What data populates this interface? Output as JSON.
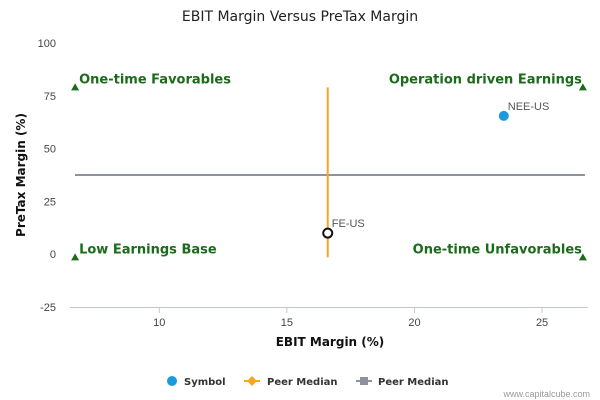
{
  "chart_data": {
    "type": "scatter",
    "title": "EBIT Margin Versus PreTax Margin",
    "xlabel": "EBIT Margin (%)",
    "ylabel": "PreTax Margin (%)",
    "xlim": [
      6.5,
      26.8
    ],
    "ylim": [
      -25,
      100
    ],
    "x_ticks": [
      "10",
      "15",
      "20",
      "25"
    ],
    "x_tick_values": [
      10,
      15,
      20,
      25
    ],
    "y_ticks": [
      "100",
      "75",
      "50",
      "25",
      "0",
      "-25"
    ],
    "y_tick_values": [
      100,
      75,
      50,
      25,
      0,
      -25
    ],
    "grid": false,
    "points": [
      {
        "label": "NEE-US",
        "x": 23.5,
        "y": 65.5,
        "color": "#1a9be0",
        "style": "filled"
      },
      {
        "label": "FE-US",
        "x": 16.6,
        "y": 10,
        "color": "#111111",
        "style": "hollow"
      }
    ],
    "peer_median_x": 16.6,
    "peer_median_x_range": [
      -1.5,
      79
    ],
    "peer_median_y": 37.5,
    "quadrant_labels": [
      {
        "text": "One-time Favorables",
        "corner": "top-left",
        "x": 6.7,
        "y": 79
      },
      {
        "text": "Operation driven Earnings",
        "corner": "top-right",
        "x": 26.6,
        "y": 79
      },
      {
        "text": "Low Earnings Base",
        "corner": "bottom-left",
        "x": 6.7,
        "y": -1.5
      },
      {
        "text": "One-time Unfavorables",
        "corner": "bottom-right",
        "x": 26.6,
        "y": -1.5
      }
    ],
    "legend": {
      "placement": "bottom-center",
      "items": [
        {
          "label": "Symbol",
          "marker": "circle",
          "color": "#1a9be0"
        },
        {
          "label": "Peer Median",
          "marker": "line-diamond",
          "color": "#f5a623"
        },
        {
          "label": "Peer Median",
          "marker": "line-square",
          "color": "#8e929e"
        }
      ]
    },
    "colors": {
      "quadrant_text": "#1a6b1a",
      "triangle": "#1a6b1a",
      "median_vertical": "#f5a623",
      "median_horizontal": "#8e929e",
      "axis": "#c0c8d8"
    }
  },
  "credit": "www.capitalcube.com"
}
